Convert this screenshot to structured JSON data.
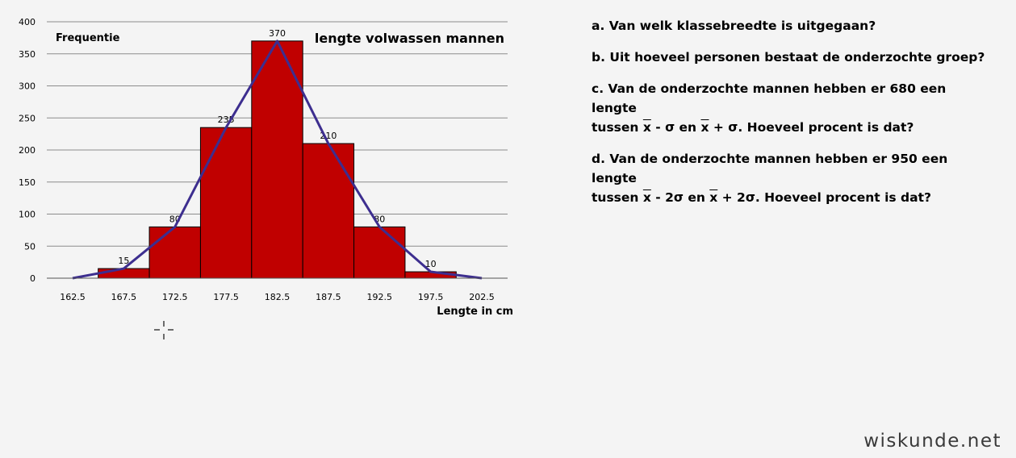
{
  "chart_data": {
    "type": "bar",
    "title": "lengte volwassen mannen",
    "ylabel": "Frequentie",
    "xlabel": "Lengte in cm",
    "ylim": [
      0,
      400
    ],
    "yticks": [
      0,
      50,
      100,
      150,
      200,
      250,
      300,
      350,
      400
    ],
    "xticks": [
      162.5,
      167.5,
      172.5,
      177.5,
      182.5,
      187.5,
      192.5,
      197.5,
      202.5
    ],
    "xlim": [
      162.5,
      202.5
    ],
    "bin_width": 5,
    "bins": [
      {
        "from": 165,
        "to": 170,
        "value": 15
      },
      {
        "from": 170,
        "to": 175,
        "value": 80
      },
      {
        "from": 175,
        "to": 180,
        "value": 235
      },
      {
        "from": 180,
        "to": 185,
        "value": 370
      },
      {
        "from": 185,
        "to": 190,
        "value": 210
      },
      {
        "from": 190,
        "to": 195,
        "value": 80
      },
      {
        "from": 195,
        "to": 200,
        "value": 10
      }
    ],
    "frequency_polygon": {
      "x": [
        162.5,
        167.5,
        172.5,
        177.5,
        182.5,
        187.5,
        192.5,
        197.5,
        202.5
      ],
      "y": [
        0,
        15,
        80,
        235,
        370,
        210,
        80,
        10,
        0
      ]
    },
    "grid": true,
    "bar_color": "#c00000",
    "line_color": "#3d2e8f"
  },
  "questions": {
    "a": "a. Van welk klassebreedte is uitgegaan?",
    "b": "b. Uit hoeveel personen bestaat de onderzochte groep?",
    "c": {
      "p1": "c. Van de onderzochte mannen hebben er 680 een lengte",
      "p2": "tussen ",
      "xbar": "x",
      "p3": " - σ en ",
      "p4": " + σ. Hoeveel procent is dat?"
    },
    "d": {
      "p1": "d. Van de onderzochte mannen hebben er 950 een lengte",
      "p2": "tussen ",
      "xbar": "x",
      "p3": " - 2σ en ",
      "p4": " + 2σ. Hoeveel procent is dat?"
    }
  },
  "watermark": "wiskunde.net"
}
